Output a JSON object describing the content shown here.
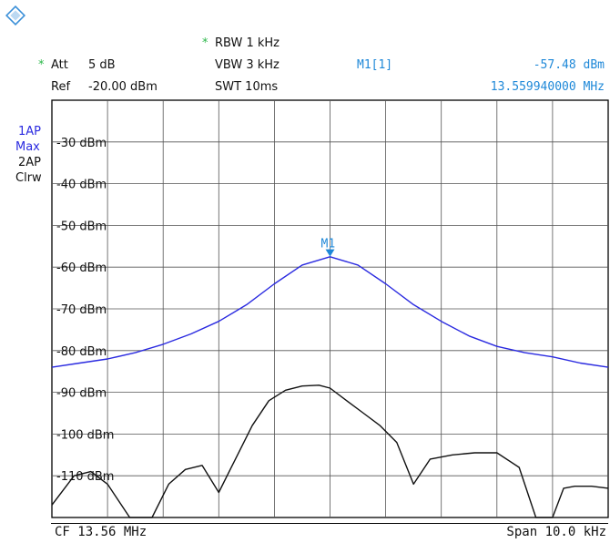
{
  "header": {
    "att_label": "Att",
    "att_value": "5 dB",
    "ref_label": "Ref",
    "ref_value": "-20.00 dBm",
    "rbw": "RBW 1 kHz",
    "vbw": "VBW 3 kHz",
    "swt": "SWT 10ms",
    "marker_name": "M1[1]",
    "marker_level": "-57.48 dBm",
    "marker_freq": "13.559940000 MHz"
  },
  "traces": {
    "t1_a": "1AP",
    "t1_b": "Max",
    "t2_a": "2AP",
    "t2_b": "Clrw"
  },
  "footer": {
    "cf": "CF 13.56 MHz",
    "span": "Span 10.0 kHz"
  },
  "colors": {
    "trace1": "#2a2ae0",
    "trace2": "#111111",
    "marker": "#1e88d8",
    "grid": "#000000"
  },
  "chart_data": {
    "type": "line",
    "ylabel_ticks": [
      "-30 dBm",
      "-40 dBm",
      "-50 dBm",
      "-60 dBm",
      "-70 dBm",
      "-80 dBm",
      "-90 dBm",
      "-100 dBm",
      "-110 dBm"
    ],
    "ylim": [
      -120,
      -20
    ],
    "x_unit": "kHz offset from CF",
    "xlim": [
      -5,
      5
    ],
    "marker": {
      "label": "M1",
      "x": 0,
      "y": -57.48
    },
    "series": [
      {
        "x": [
          -5,
          -4.5,
          -4,
          -3.5,
          -3,
          -2.5,
          -2,
          -1.5,
          -1,
          -0.5,
          0,
          0.5,
          1,
          1.5,
          2,
          2.5,
          3,
          3.5,
          4,
          4.5,
          5
        ],
        "values": [
          -84,
          -83,
          -82,
          -80.5,
          -78.5,
          -76,
          -73,
          -69,
          -64,
          -59.5,
          -57.5,
          -59.5,
          -64,
          -69,
          -73,
          -76.5,
          -79,
          -80.5,
          -81.5,
          -83,
          -84
        ]
      },
      {
        "x": [
          -5,
          -4.6,
          -4.3,
          -4,
          -3.6,
          -3.2,
          -2.9,
          -2.6,
          -2.3,
          -2,
          -1.7,
          -1.4,
          -1.1,
          -0.8,
          -0.5,
          -0.2,
          0,
          0.3,
          0.6,
          0.9,
          1.2,
          1.5,
          1.8,
          2.2,
          2.6,
          3,
          3.4,
          3.7,
          4,
          4.2,
          4.4,
          4.7,
          5
        ],
        "values": [
          -117,
          -110,
          -109,
          -112,
          -120,
          -120,
          -112,
          -108.5,
          -107.5,
          -114,
          -106,
          -98,
          -92,
          -89.5,
          -88.5,
          -88.3,
          -89,
          -92,
          -95,
          -98,
          -102,
          -112,
          -106,
          -105,
          -104.5,
          -104.5,
          -108,
          -120,
          -120,
          -113,
          -112.5,
          -112.5,
          -113
        ]
      }
    ]
  }
}
